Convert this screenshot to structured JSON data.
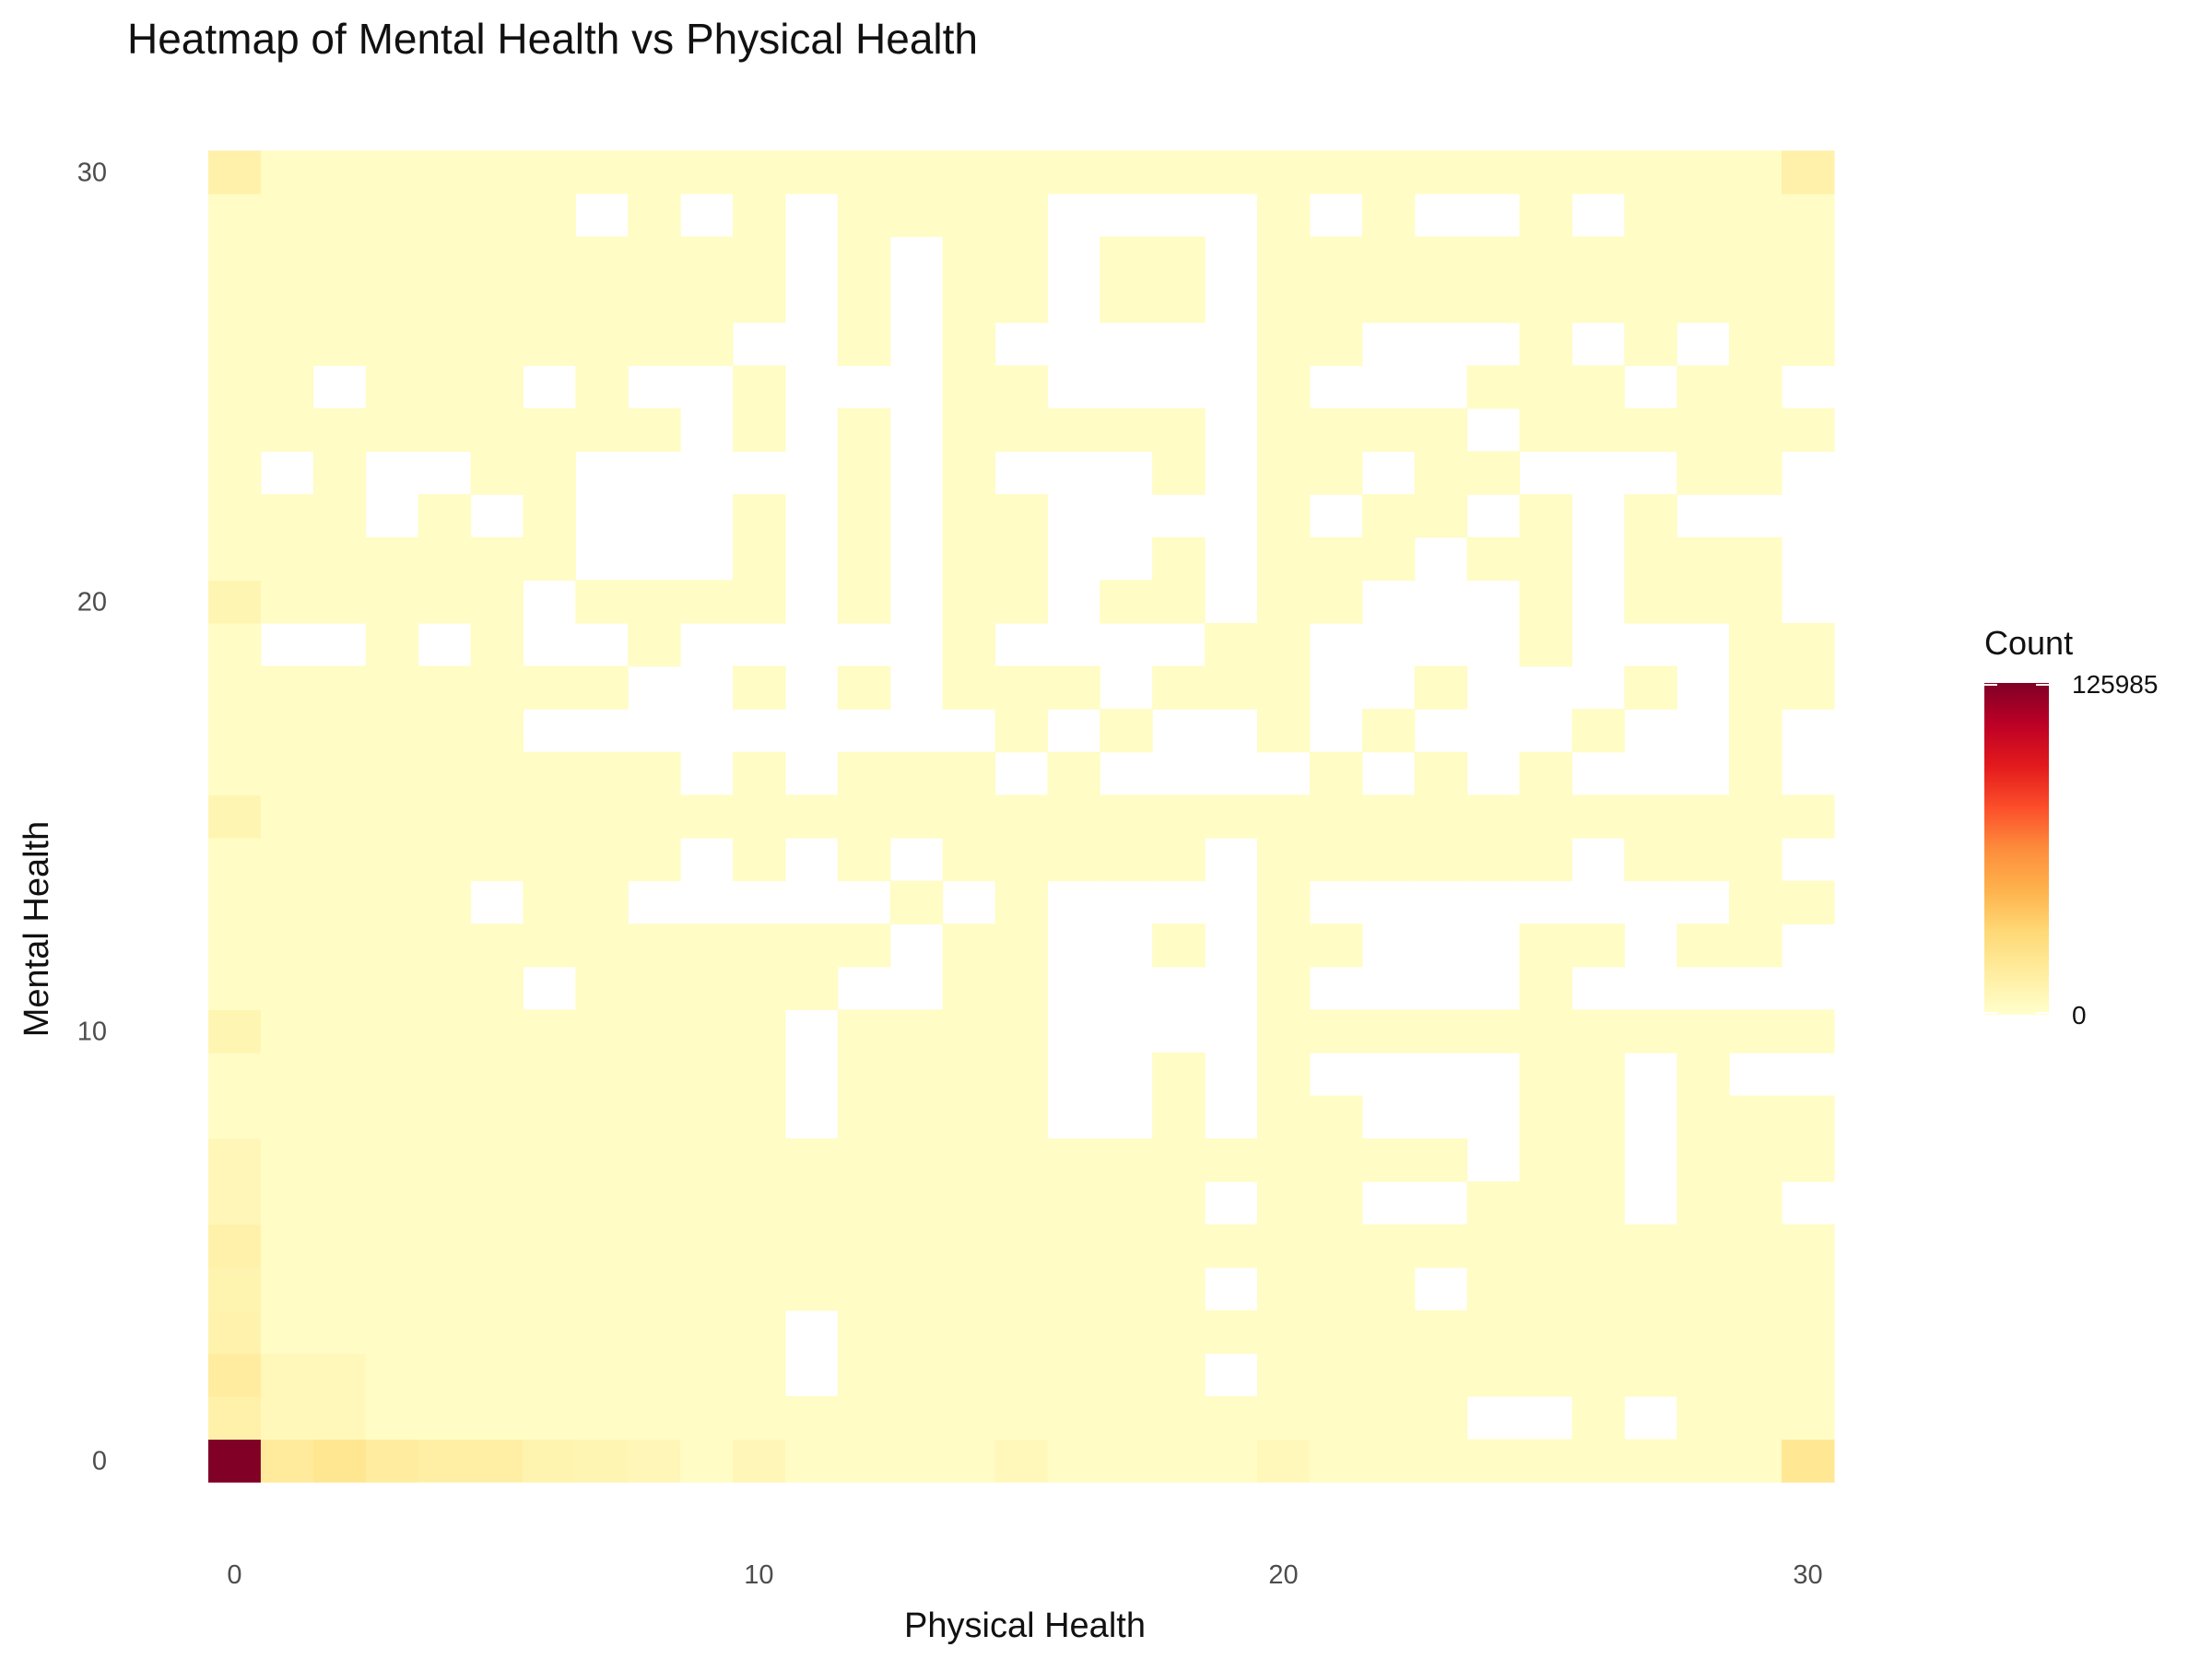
{
  "chart_data": {
    "type": "heatmap",
    "title": "Heatmap of Mental Health vs Physical Health",
    "xlabel": "Physical Health",
    "ylabel": "Mental Health",
    "x_range": [
      0,
      30
    ],
    "y_range": [
      0,
      30
    ],
    "x_ticks": [
      "0",
      "10",
      "20",
      "30"
    ],
    "y_ticks": [
      "0",
      "10",
      "20",
      "30"
    ],
    "grid": false,
    "legend": {
      "title": "Count",
      "placement": "right",
      "min_label": "0",
      "max_label": "125985",
      "min": 0,
      "max": 125985,
      "colors": [
        "#ffffcc",
        "#ffeda0",
        "#fed976",
        "#feb24c",
        "#fd8d3c",
        "#fc4e2a",
        "#e31a1c",
        "#bd0026",
        "#800026"
      ]
    },
    "missing_rows": [
      [
        27,
        17,
        22
      ],
      [
        27,
        28,
        30,
        32
      ],
      [
        26,
        28,
        30,
        32
      ],
      [
        26,
        28,
        30,
        32
      ],
      [
        27,
        29
      ],
      [
        26,
        27,
        30
      ],
      [],
      [
        27,
        29
      ],
      [],
      [
        26,
        27,
        29,
        30,
        32
      ],
      [],
      [],
      [
        27,
        29
      ],
      [
        29
      ],
      [],
      [
        29
      ],
      [
        26,
        27,
        29
      ]
    ],
    "missing": [
      [
        11,
        2
      ],
      [
        11,
        3
      ],
      [
        19,
        2
      ],
      [
        24,
        1
      ],
      [
        25,
        1
      ],
      [
        27,
        1
      ],
      [
        19,
        4
      ],
      [
        23,
        4
      ],
      [
        19,
        6
      ],
      [
        22,
        6
      ],
      [
        23,
        6
      ],
      [
        27,
        6
      ],
      [
        30,
        6
      ],
      [
        24,
        7
      ],
      [
        27,
        7
      ],
      [
        11,
        8
      ],
      [
        16,
        8
      ],
      [
        17,
        8
      ],
      [
        19,
        8
      ],
      [
        22,
        8
      ],
      [
        23,
        8
      ],
      [
        24,
        8
      ],
      [
        27,
        8
      ],
      [
        11,
        9
      ],
      [
        16,
        9
      ],
      [
        17,
        9
      ],
      [
        19,
        9
      ],
      [
        21,
        9
      ],
      [
        22,
        9
      ],
      [
        23,
        9
      ],
      [
        24,
        9
      ],
      [
        27,
        9
      ],
      [
        29,
        9
      ],
      [
        30,
        9
      ],
      [
        11,
        10
      ],
      [
        16,
        10
      ],
      [
        17,
        10
      ],
      [
        18,
        10
      ],
      [
        19,
        10
      ],
      [
        6,
        11
      ],
      [
        12,
        11
      ],
      [
        13,
        11
      ],
      [
        16,
        11
      ],
      [
        17,
        11
      ],
      [
        18,
        11
      ],
      [
        19,
        11
      ],
      [
        21,
        11
      ],
      [
        22,
        11
      ],
      [
        23,
        11
      ],
      [
        24,
        11
      ],
      [
        26,
        11
      ],
      [
        27,
        11
      ],
      [
        28,
        11
      ],
      [
        29,
        11
      ],
      [
        30,
        11
      ],
      [
        13,
        12
      ],
      [
        16,
        12
      ],
      [
        17,
        12
      ],
      [
        19,
        12
      ],
      [
        22,
        12
      ],
      [
        23,
        12
      ],
      [
        24,
        12
      ],
      [
        27,
        12
      ],
      [
        30,
        12
      ],
      [
        5,
        13
      ],
      [
        8,
        13
      ],
      [
        9,
        13
      ],
      [
        10,
        13
      ],
      [
        11,
        13
      ],
      [
        12,
        13
      ],
      [
        14,
        13
      ],
      [
        16,
        13
      ],
      [
        17,
        13
      ],
      [
        18,
        13
      ],
      [
        19,
        13
      ],
      [
        21,
        13
      ],
      [
        22,
        13
      ],
      [
        23,
        13
      ],
      [
        24,
        13
      ],
      [
        25,
        13
      ],
      [
        26,
        13
      ],
      [
        27,
        13
      ],
      [
        28,
        13
      ],
      [
        9,
        14
      ],
      [
        11,
        14
      ],
      [
        13,
        14
      ],
      [
        19,
        14
      ],
      [
        26,
        14
      ],
      [
        30,
        14
      ],
      [
        9,
        16
      ],
      [
        11,
        16
      ],
      [
        15,
        16
      ],
      [
        17,
        16
      ],
      [
        18,
        16
      ],
      [
        19,
        16
      ],
      [
        20,
        16
      ],
      [
        22,
        16
      ],
      [
        24,
        16
      ],
      [
        26,
        16
      ],
      [
        27,
        16
      ],
      [
        28,
        16
      ],
      [
        30,
        16
      ],
      [
        6,
        17
      ],
      [
        7,
        17
      ],
      [
        8,
        17
      ],
      [
        9,
        17
      ],
      [
        10,
        17
      ],
      [
        11,
        17
      ],
      [
        12,
        17
      ],
      [
        13,
        17
      ],
      [
        14,
        17
      ],
      [
        16,
        17
      ],
      [
        18,
        17
      ],
      [
        19,
        17
      ],
      [
        21,
        17
      ],
      [
        23,
        17
      ],
      [
        24,
        17
      ],
      [
        25,
        17
      ],
      [
        27,
        17
      ],
      [
        28,
        17
      ],
      [
        30,
        17
      ],
      [
        8,
        18
      ],
      [
        9,
        18
      ],
      [
        11,
        18
      ],
      [
        13,
        18
      ],
      [
        17,
        18
      ],
      [
        21,
        18
      ],
      [
        22,
        18
      ],
      [
        24,
        18
      ],
      [
        25,
        18
      ],
      [
        26,
        18
      ],
      [
        28,
        18
      ],
      [
        1,
        19
      ],
      [
        2,
        19
      ],
      [
        4,
        19
      ],
      [
        6,
        19
      ],
      [
        7,
        19
      ],
      [
        9,
        19
      ],
      [
        10,
        19
      ],
      [
        11,
        19
      ],
      [
        12,
        19
      ],
      [
        13,
        19
      ],
      [
        15,
        19
      ],
      [
        16,
        19
      ],
      [
        17,
        19
      ],
      [
        18,
        19
      ],
      [
        21,
        19
      ],
      [
        22,
        19
      ],
      [
        23,
        19
      ],
      [
        24,
        19
      ],
      [
        26,
        19
      ],
      [
        27,
        19
      ],
      [
        28,
        19
      ],
      [
        19,
        20
      ],
      [
        19,
        21
      ]
    ],
    "hot_cells": [
      {
        "x": 0,
        "y": 0,
        "t": 1.0
      },
      {
        "x": 1,
        "y": 0,
        "t": 0.14
      },
      {
        "x": 2,
        "y": 0,
        "t": 0.17
      },
      {
        "x": 3,
        "y": 0,
        "t": 0.13
      },
      {
        "x": 4,
        "y": 0,
        "t": 0.11
      },
      {
        "x": 5,
        "y": 0,
        "t": 0.11
      },
      {
        "x": 6,
        "y": 0,
        "t": 0.08
      },
      {
        "x": 7,
        "y": 0,
        "t": 0.07
      },
      {
        "x": 8,
        "y": 0,
        "t": 0.06
      },
      {
        "x": 10,
        "y": 0,
        "t": 0.06
      },
      {
        "x": 15,
        "y": 0,
        "t": 0.05
      },
      {
        "x": 20,
        "y": 0,
        "t": 0.05
      },
      {
        "x": 30,
        "y": 0,
        "t": 0.16
      },
      {
        "x": 0,
        "y": 1,
        "t": 0.1
      },
      {
        "x": 0,
        "y": 2,
        "t": 0.13
      },
      {
        "x": 0,
        "y": 3,
        "t": 0.09
      },
      {
        "x": 0,
        "y": 4,
        "t": 0.08
      },
      {
        "x": 0,
        "y": 5,
        "t": 0.1
      },
      {
        "x": 0,
        "y": 6,
        "t": 0.06
      },
      {
        "x": 0,
        "y": 7,
        "t": 0.06
      },
      {
        "x": 0,
        "y": 10,
        "t": 0.07
      },
      {
        "x": 0,
        "y": 15,
        "t": 0.07
      },
      {
        "x": 0,
        "y": 20,
        "t": 0.07
      },
      {
        "x": 0,
        "y": 30,
        "t": 0.1
      },
      {
        "x": 30,
        "y": 30,
        "t": 0.1
      },
      {
        "x": 1,
        "y": 1,
        "t": 0.05
      },
      {
        "x": 2,
        "y": 2,
        "t": 0.05
      },
      {
        "x": 1,
        "y": 2,
        "t": 0.05
      },
      {
        "x": 2,
        "y": 1,
        "t": 0.05
      }
    ]
  }
}
